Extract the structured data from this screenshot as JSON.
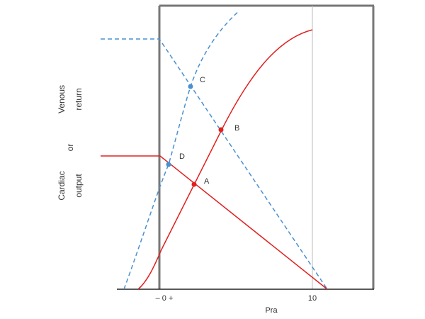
{
  "x_axis": {
    "label": "Pra",
    "ticks": [
      "– 0 +",
      "10"
    ]
  },
  "y_axis": {
    "label_lines": [
      "Venous",
      "return",
      "or",
      "Cardiac",
      "output"
    ]
  },
  "points": [
    "A",
    "B",
    "C",
    "D"
  ]
}
